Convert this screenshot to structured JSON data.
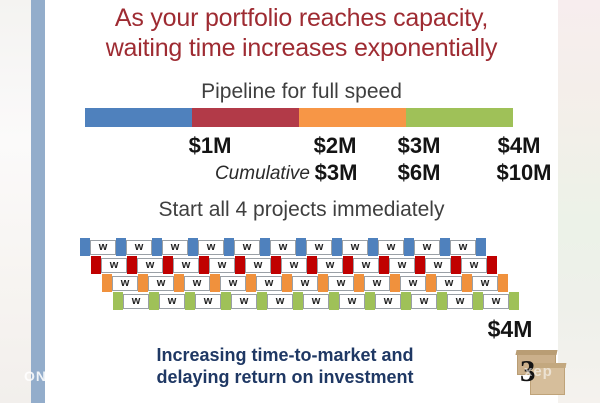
{
  "slide": {
    "title_line1": "As your portfolio reaches capacity,",
    "title_line2": "waiting time increases exponentially",
    "pipeline": {
      "heading": "Pipeline for full speed",
      "segments": [
        {
          "label": "$1M",
          "color": "#4f81bd"
        },
        {
          "label": "$2M",
          "color": "#b23a48"
        },
        {
          "label": "$3M",
          "color": "#f79646"
        },
        {
          "label": "$4M",
          "color": "#9fc158"
        }
      ],
      "cumulative_label": "Cumulative",
      "cumulative_values": [
        "$3M",
        "$6M",
        "$10M"
      ]
    },
    "projects": {
      "heading": "Start all 4 projects immediately",
      "wait_symbol": "w",
      "rows": [
        {
          "name": "project-1-timeline",
          "color": "#4f81bd",
          "work_blocks": 12,
          "wait_slots": 11
        },
        {
          "name": "project-2-timeline",
          "color": "#c00000",
          "work_blocks": 12,
          "wait_slots": 11
        },
        {
          "name": "project-3-timeline",
          "color": "#f0913d",
          "work_blocks": 12,
          "wait_slots": 11
        },
        {
          "name": "project-4-timeline",
          "color": "#9fc158",
          "work_blocks": 12,
          "wait_slots": 11
        }
      ],
      "total_label": "$4M"
    },
    "footer_line1": "Increasing time-to-market and",
    "footer_line2": "delaying return on investment",
    "boxes_badge": "3"
  },
  "watermarks": {
    "left": "ON",
    "right": "xep"
  }
}
